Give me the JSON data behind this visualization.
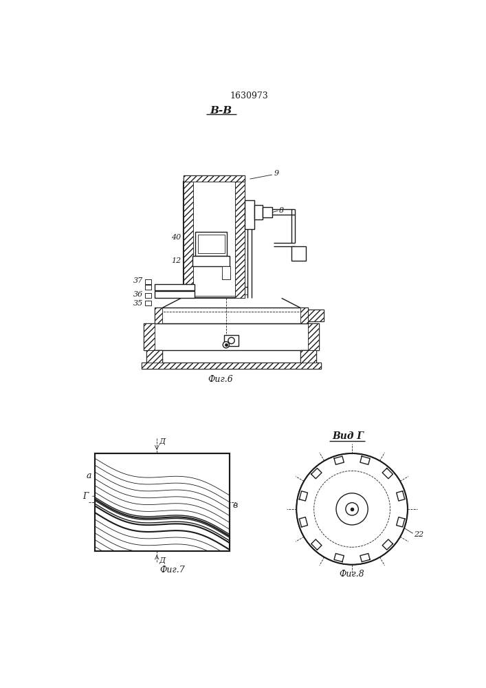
{
  "title": "1630973",
  "bg_color": "#ffffff",
  "line_color": "#1a1a1a",
  "fig6_label": "Фиг.6",
  "fig7_label": "Фиг.7",
  "fig8_label": "Фиг.8",
  "view_bb_label": "В-В",
  "view_g_label": "Вид Г",
  "label_d": "Д",
  "label_a": "a",
  "label_g": "Г",
  "label_v": "в",
  "label_22": "22",
  "label_9": "9",
  "label_8": "8",
  "label_40": "40",
  "label_12": "12",
  "label_37": "37",
  "label_36": "36",
  "label_35": "35"
}
